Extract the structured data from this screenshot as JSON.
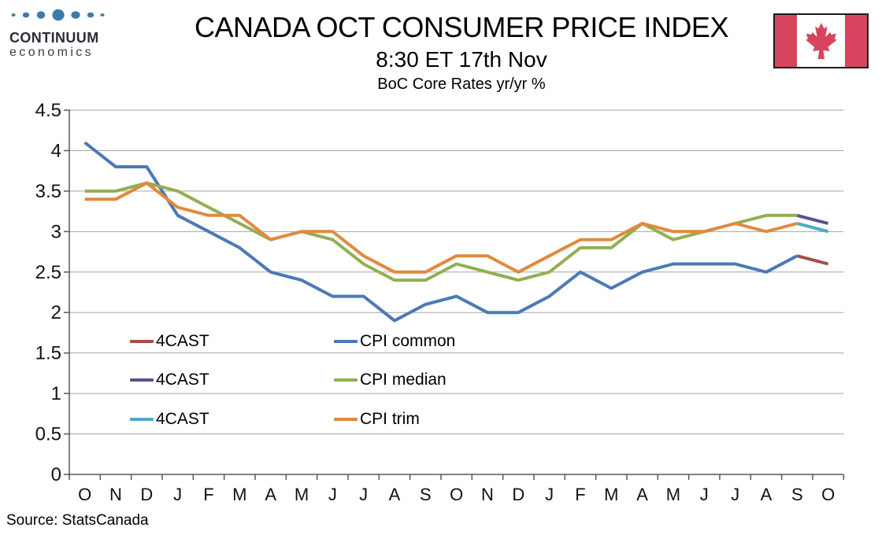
{
  "logo": {
    "line1": "CONTINUUM",
    "line2": "economics",
    "dot_color": "#3E79AC"
  },
  "flag": {
    "red": "#D6455D",
    "border": "#1a1a1a"
  },
  "source": "Source: StatsCanada",
  "chart_data": {
    "type": "line",
    "title": "CANADA OCT CONSUMER PRICE INDEX",
    "subtitle": "8:30 ET 17th Nov",
    "note": "BoC Core Rates yr/yr %",
    "x_labels": [
      "O",
      "N",
      "D",
      "J",
      "F",
      "M",
      "A",
      "M",
      "J",
      "J",
      "A",
      "S",
      "O",
      "N",
      "D",
      "J",
      "F",
      "M",
      "A",
      "M",
      "J",
      "J",
      "A",
      "S",
      "O"
    ],
    "ylim": [
      0,
      4.5
    ],
    "ytick_step": 0.5,
    "grid": true,
    "grid_color": "#a6a6a6",
    "axis_color": "#595959",
    "legend_position": "inside-lower-left",
    "series": [
      {
        "id": "cast-common",
        "name": "4CAST",
        "color": "#A94D45",
        "values": [
          null,
          null,
          null,
          null,
          null,
          null,
          null,
          null,
          null,
          null,
          null,
          null,
          null,
          null,
          null,
          null,
          null,
          null,
          null,
          null,
          null,
          null,
          null,
          2.7,
          2.6
        ]
      },
      {
        "id": "cpi-common",
        "name": "CPI common",
        "color": "#4C79B5",
        "values": [
          4.1,
          3.8,
          3.8,
          3.2,
          3.0,
          2.8,
          2.5,
          2.4,
          2.2,
          2.2,
          1.9,
          2.1,
          2.2,
          2.0,
          2.0,
          2.2,
          2.5,
          2.3,
          2.5,
          2.6,
          2.6,
          2.6,
          2.5,
          2.7,
          null
        ]
      },
      {
        "id": "cast-median",
        "name": "4CAST",
        "color": "#5F4E93",
        "values": [
          null,
          null,
          null,
          null,
          null,
          null,
          null,
          null,
          null,
          null,
          null,
          null,
          null,
          null,
          null,
          null,
          null,
          null,
          null,
          null,
          null,
          null,
          null,
          3.2,
          3.1
        ]
      },
      {
        "id": "cpi-median",
        "name": "CPI median",
        "color": "#92AF52",
        "values": [
          3.5,
          3.5,
          3.6,
          3.5,
          3.3,
          3.1,
          2.9,
          3.0,
          2.9,
          2.6,
          2.4,
          2.4,
          2.6,
          2.5,
          2.4,
          2.5,
          2.8,
          2.8,
          3.1,
          2.9,
          3.0,
          3.1,
          3.2,
          3.2,
          null
        ]
      },
      {
        "id": "cast-trim",
        "name": "4CAST",
        "color": "#4BACC4",
        "values": [
          null,
          null,
          null,
          null,
          null,
          null,
          null,
          null,
          null,
          null,
          null,
          null,
          null,
          null,
          null,
          null,
          null,
          null,
          null,
          null,
          null,
          null,
          null,
          3.1,
          3.0
        ]
      },
      {
        "id": "cpi-trim",
        "name": "CPI trim",
        "color": "#E08A3E",
        "values": [
          3.4,
          3.4,
          3.6,
          3.3,
          3.2,
          3.2,
          2.9,
          3.0,
          3.0,
          2.7,
          2.5,
          2.5,
          2.7,
          2.7,
          2.5,
          2.7,
          2.9,
          2.9,
          3.1,
          3.0,
          3.0,
          3.1,
          3.0,
          3.1,
          null
        ]
      }
    ],
    "legend": [
      {
        "label": "4CAST",
        "color": "#A94D45"
      },
      {
        "label": "CPI common",
        "color": "#4C79B5"
      },
      {
        "label": "4CAST",
        "color": "#5F4E93"
      },
      {
        "label": "CPI median",
        "color": "#92AF52"
      },
      {
        "label": "4CAST",
        "color": "#4BACC4"
      },
      {
        "label": "CPI trim",
        "color": "#E08A3E"
      }
    ]
  }
}
